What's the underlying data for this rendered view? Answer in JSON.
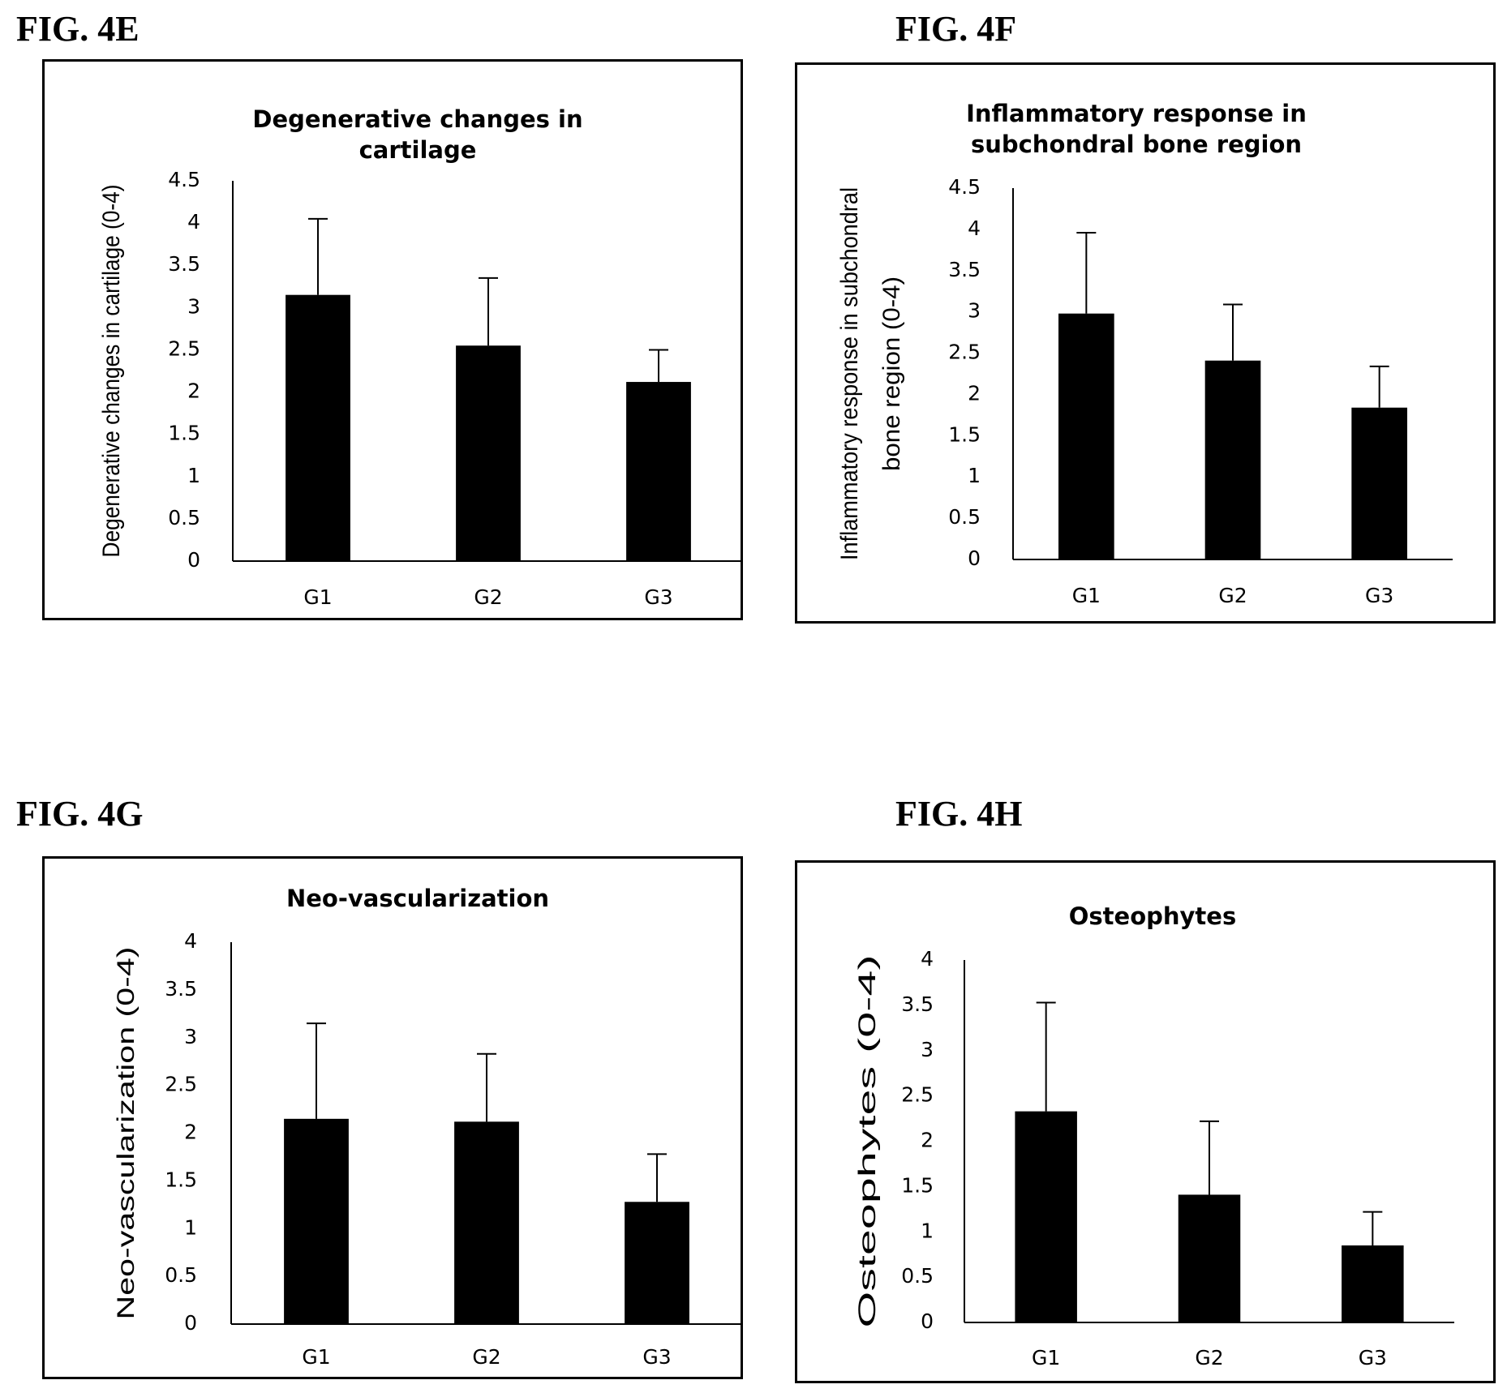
{
  "figures": [
    {
      "label": "FIG. 4E"
    },
    {
      "label": "FIG. 4F"
    },
    {
      "label": "FIG. 4G"
    },
    {
      "label": "FIG. 4H"
    }
  ],
  "chart_data": [
    {
      "type": "bar",
      "title": "Degenerative changes in cartilage",
      "title_lines": [
        "Degenerative changes in",
        "cartilage"
      ],
      "ylabel": "Degenerative changes in cartilage (0-4)",
      "ylabel_lines": [
        "Degenerative changes in cartilage (0-4)"
      ],
      "xlabel": "",
      "categories": [
        "G1",
        "G2",
        "G3"
      ],
      "values": [
        3.15,
        2.55,
        2.12
      ],
      "errors": [
        0.9,
        0.8,
        0.38
      ],
      "ylim": [
        0,
        4.5
      ],
      "yticks": [
        "0",
        "0.5",
        "1",
        "1.5",
        "2",
        "2.5",
        "3",
        "3.5",
        "4",
        "4.5"
      ],
      "grid": false,
      "bar_color": "#000000"
    },
    {
      "type": "bar",
      "title": "Inflammatory response in subchondral bone region",
      "title_lines": [
        "Inflammatory response in",
        "subchondral  bone region"
      ],
      "ylabel": "Inflammatory response in subchondral bone region (0-4)",
      "ylabel_lines": [
        "Inflammatory response in subchondral",
        "bone region (0-4)"
      ],
      "xlabel": "",
      "categories": [
        "G1",
        "G2",
        "G3"
      ],
      "values": [
        2.98,
        2.41,
        1.84
      ],
      "errors": [
        0.98,
        0.68,
        0.5
      ],
      "ylim": [
        0,
        4.5
      ],
      "yticks": [
        "0",
        "0.5",
        "1",
        "1.5",
        "2",
        "2.5",
        "3",
        "3.5",
        "4",
        "4.5"
      ],
      "grid": false,
      "bar_color": "#000000"
    },
    {
      "type": "bar",
      "title": "Neo-vascularization",
      "title_lines": [
        "Neo-vascularization"
      ],
      "ylabel": "Neo-vascularization (0-4)",
      "ylabel_lines": [
        "Neo-vascularization (0-4)"
      ],
      "xlabel": "",
      "categories": [
        "G1",
        "G2",
        "G3"
      ],
      "values": [
        2.15,
        2.12,
        1.28
      ],
      "errors": [
        1.0,
        0.71,
        0.5
      ],
      "ylim": [
        0,
        4
      ],
      "yticks": [
        "0",
        "0.5",
        "1",
        "1.5",
        "2",
        "2.5",
        "3",
        "3.5",
        "4"
      ],
      "grid": false,
      "bar_color": "#000000"
    },
    {
      "type": "bar",
      "title": "Osteophytes",
      "title_lines": [
        "Osteophytes"
      ],
      "ylabel": "Osteophytes    (0-4)",
      "ylabel_lines": [
        "Osteophytes    (0-4)"
      ],
      "xlabel": "",
      "categories": [
        "G1",
        "G2",
        "G3"
      ],
      "values": [
        2.33,
        1.41,
        0.85
      ],
      "errors": [
        1.2,
        0.81,
        0.37
      ],
      "ylim": [
        0,
        4
      ],
      "yticks": [
        "0",
        "0.5",
        "1",
        "1.5",
        "2",
        "2.5",
        "3",
        "3.5",
        "4"
      ],
      "grid": false,
      "bar_color": "#000000"
    }
  ]
}
